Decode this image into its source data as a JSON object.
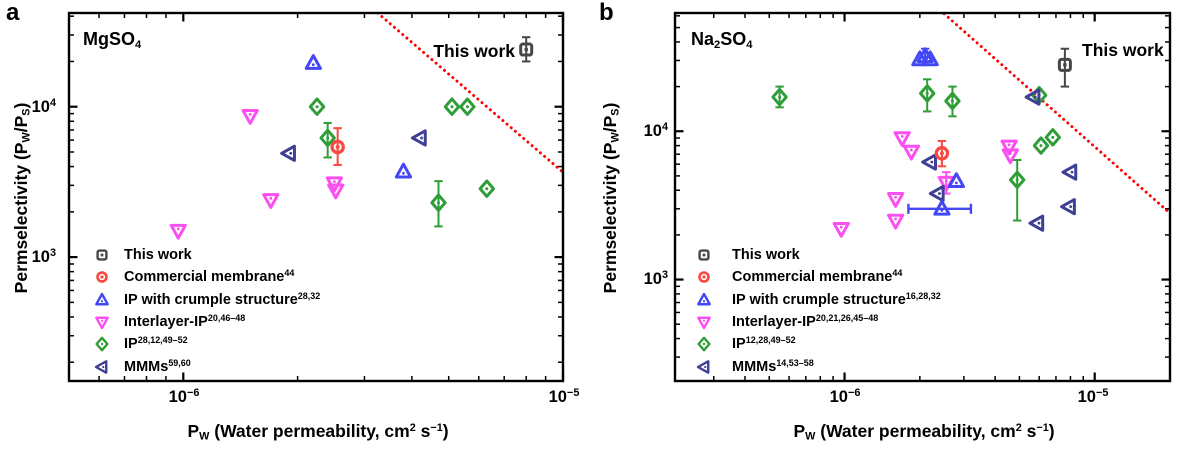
{
  "chart_data": [
    {
      "type": "scatter",
      "panel_letter": "a",
      "title": "MgSO4",
      "title_html": "MgSO<sub>4</sub>",
      "annotation_text": "This work",
      "xlabel_html": "P<sub>W</sub> (Water permeability, cm<sup>2</sup> s<sup>−1</sup>)",
      "ylabel_html": "Permselectivity (P<sub>W</sub>/P<sub>S</sub>)",
      "xscale": "log",
      "yscale": "log",
      "xlim": [
        5e-07,
        1e-05
      ],
      "ylim": [
        150,
        42000
      ],
      "xtick_labels": [
        {
          "value": 1e-06,
          "html": "10<sup>−6</sup>"
        },
        {
          "value": 1e-05,
          "html": "10<sup>−5</sup>"
        }
      ],
      "ytick_labels": [
        {
          "value": 1000.0,
          "html": "10<sup>3</sup>"
        },
        {
          "value": 10000.0,
          "html": "10<sup>4</sup>"
        }
      ],
      "upper_bound_line": {
        "x": [
          3.25e-06,
          1.05e-05
        ],
        "y": [
          42000,
          3300
        ],
        "color": "#ff0000",
        "style": "dotted"
      },
      "series": [
        {
          "key": "this_work",
          "label_html": "This work",
          "marker": "square",
          "color": "#474747",
          "points": [
            {
              "x": 8e-06,
              "y": 24000.0,
              "yerr": [
                20000.0,
                29000.0
              ]
            }
          ]
        },
        {
          "key": "commercial_membrane",
          "label_html": "Commercial membrane<sup>44</sup>",
          "marker": "circle",
          "color": "#f94940",
          "points": [
            {
              "x": 2.55e-06,
              "y": 5400.0,
              "yerr": [
                4100.0,
                7200.0
              ]
            }
          ]
        },
        {
          "key": "ip_crumple",
          "label_html": "IP with crumple structure<sup>28,32</sup>",
          "marker": "triangle-up",
          "color": "#4347f5",
          "points": [
            {
              "x": 2.2e-06,
              "y": 19500.0
            },
            {
              "x": 3.8e-06,
              "y": 3700.0
            }
          ]
        },
        {
          "key": "interlayer_ip",
          "label_html": "Interlayer-IP<sup>20,46–48</sup>",
          "marker": "triangle-down",
          "color": "#fb4ff2",
          "points": [
            {
              "x": 1.5e-06,
              "y": 8700.0
            },
            {
              "x": 2.5e-06,
              "y": 3100.0
            },
            {
              "x": 2.52e-06,
              "y": 2780.0
            },
            {
              "x": 1.7e-06,
              "y": 2400.0
            },
            {
              "x": 9.7e-07,
              "y": 1500.0
            }
          ]
        },
        {
          "key": "ip",
          "label_html": "IP<sup>28,12,49–52</sup>",
          "marker": "diamond",
          "color": "#2f9e38",
          "points": [
            {
              "x": 2.25e-06,
              "y": 10000.0
            },
            {
              "x": 2.4e-06,
              "y": 6200.0,
              "yerr": [
                4600.0,
                7800.0
              ]
            },
            {
              "x": 5.1e-06,
              "y": 10000.0
            },
            {
              "x": 5.6e-06,
              "y": 10000.0
            },
            {
              "x": 4.7e-06,
              "y": 2300.0,
              "yerr": [
                1600.0,
                3200.0
              ]
            },
            {
              "x": 6.3e-06,
              "y": 2850.0
            }
          ]
        },
        {
          "key": "mmms",
          "label_html": "MMMs<sup>59,60</sup>",
          "marker": "triangle-left",
          "color": "#3f3f96",
          "points": [
            {
              "x": 1.9e-06,
              "y": 4900.0
            },
            {
              "x": 4.2e-06,
              "y": 6200.0
            }
          ]
        }
      ]
    },
    {
      "type": "scatter",
      "panel_letter": "b",
      "title": "Na2SO4",
      "title_html": "Na<sub>2</sub>SO<sub>4</sub>",
      "annotation_text": "This work",
      "xlabel_html": "P<sub>W</sub> (Water permeability, cm<sup>2</sup> s<sup>−1</sup>)",
      "ylabel_html": "Permselectivity (P<sub>W</sub>/P<sub>S</sub>)",
      "xscale": "log",
      "yscale": "log",
      "xlim": [
        2.1e-07,
        2e-05
      ],
      "ylim": [
        207,
        62700
      ],
      "xtick_labels": [
        {
          "value": 1e-06,
          "html": "10<sup>−6</sup>"
        },
        {
          "value": 1e-05,
          "html": "10<sup>−5</sup>"
        }
      ],
      "ytick_labels": [
        {
          "value": 1000.0,
          "html": "10<sup>3</sup>"
        },
        {
          "value": 10000.0,
          "html": "10<sup>4</sup>"
        }
      ],
      "upper_bound_line": {
        "x": [
          2.5e-06,
          2e-05
        ],
        "y": [
          62000,
          2800
        ],
        "color": "#ff0000",
        "style": "dotted"
      },
      "series": [
        {
          "key": "this_work",
          "label_html": "This work",
          "marker": "square",
          "color": "#474747",
          "points": [
            {
              "x": 7.6e-06,
              "y": 28000.0,
              "yerr": [
                20000.0,
                36000.0
              ]
            }
          ]
        },
        {
          "key": "commercial_membrane",
          "label_html": "Commercial membrane<sup>44</sup>",
          "marker": "circle",
          "color": "#f94940",
          "points": [
            {
              "x": 2.45e-06,
              "y": 7100.0,
              "yerr": [
                5800.0,
                8600.0
              ]
            }
          ]
        },
        {
          "key": "ip_crumple",
          "label_html": "IP with crumple structure<sup>16,28,32</sup>",
          "marker": "triangle-up",
          "color": "#4347f5",
          "points": [
            {
              "x": 2e-06,
              "y": 30500.0
            },
            {
              "x": 2.1e-06,
              "y": 32000.0,
              "yerr": [
                28000.0,
                36000.0
              ]
            },
            {
              "x": 2.2e-06,
              "y": 30500.0
            },
            {
              "x": 2.8e-06,
              "y": 4600.0
            },
            {
              "x": 2.45e-06,
              "y": 3000.0,
              "xerr": [
                1.8e-06,
                3.2e-06
              ]
            }
          ]
        },
        {
          "key": "interlayer_ip",
          "label_html": "Interlayer-IP<sup>20,21,26,45–48</sup>",
          "marker": "triangle-down",
          "color": "#fb4ff2",
          "points": [
            {
              "x": 1.7e-06,
              "y": 9000.0
            },
            {
              "x": 1.85e-06,
              "y": 7300.0
            },
            {
              "x": 2.55e-06,
              "y": 4500.0,
              "yerr": [
                3800.0,
                5300.0
              ]
            },
            {
              "x": 4.55e-06,
              "y": 7900.0
            },
            {
              "x": 4.6e-06,
              "y": 6900.0
            },
            {
              "x": 1.6e-06,
              "y": 3500.0
            },
            {
              "x": 1.6e-06,
              "y": 2500.0
            },
            {
              "x": 9.7e-07,
              "y": 2200.0
            }
          ]
        },
        {
          "key": "ip",
          "label_html": "IP<sup>12,28,49–52</sup>",
          "marker": "diamond",
          "color": "#2f9e38",
          "points": [
            {
              "x": 5.5e-07,
              "y": 17000.0,
              "yerr": [
                14500.0,
                20000.0
              ]
            },
            {
              "x": 2.14e-06,
              "y": 18000.0,
              "yerr": [
                13600.0,
                22400.0
              ]
            },
            {
              "x": 2.7e-06,
              "y": 16000.0,
              "yerr": [
                12600.0,
                20000.0
              ]
            },
            {
              "x": 6e-06,
              "y": 17500.0
            },
            {
              "x": 4.9e-06,
              "y": 4700.0,
              "yerr": [
                2500.0,
                6400.0
              ]
            },
            {
              "x": 6.1e-06,
              "y": 8000.0
            },
            {
              "x": 6.8e-06,
              "y": 9100.0
            }
          ]
        },
        {
          "key": "mmms",
          "label_html": "MMMs<sup>14,53–58</sup>",
          "marker": "triangle-left",
          "color": "#3f3f96",
          "points": [
            {
              "x": 2.2e-06,
              "y": 6200.0
            },
            {
              "x": 2.36e-06,
              "y": 3800.0
            },
            {
              "x": 5.7e-06,
              "y": 17000.0
            },
            {
              "x": 5.9e-06,
              "y": 2400.0
            },
            {
              "x": 7.9e-06,
              "y": 3100.0
            },
            {
              "x": 8e-06,
              "y": 5300.0
            }
          ]
        }
      ]
    }
  ]
}
